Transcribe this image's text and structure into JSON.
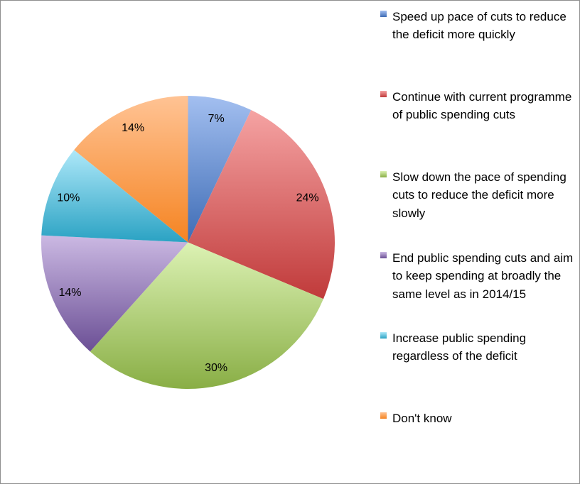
{
  "chart_data": {
    "type": "pie",
    "start_angle": "top, clockwise",
    "legend_position": "right",
    "categories": [
      "Speed up pace of cuts to reduce the deficit more quickly",
      "Continue with current programme of public spending cuts",
      "Slow down the pace of spending cuts to reduce the deficit more slowly",
      "End public spending cuts and aim to keep spending at broadly the same level as in 2014/15",
      "Increase public spending regardless of the deficit",
      "Don't know"
    ],
    "values": [
      7,
      24,
      30,
      14,
      10,
      14
    ],
    "labels": [
      "7%",
      "24%",
      "30%",
      "14%",
      "10%",
      "14%"
    ],
    "colors": [
      "#4f81bd",
      "#c0504d",
      "#9bbb59",
      "#8064a2",
      "#4bacc6",
      "#f79646"
    ],
    "colors_light": [
      "#a3bff0",
      "#f5a3a3",
      "#dcf2b4",
      "#cbb9e3",
      "#aee8f9",
      "#ffc394"
    ],
    "colors_dark": [
      "#3e6cb5",
      "#c03a3a",
      "#89ae45",
      "#6b4f95",
      "#2aa2c3",
      "#f58422"
    ]
  }
}
